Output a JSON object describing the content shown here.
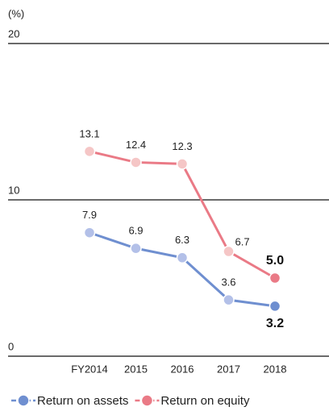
{
  "chart_data": {
    "type": "line",
    "y_unit": "(%)",
    "categories": [
      "FY2014",
      "2015",
      "2016",
      "2017",
      "2018"
    ],
    "ylim": [
      0,
      20
    ],
    "yticks": [
      0,
      10,
      20
    ],
    "grid": true,
    "legend": "bottom",
    "series": [
      {
        "name": "Return on assets",
        "color": "#6f8fd0",
        "point_color": "#b3c0e8",
        "values": [
          7.9,
          6.9,
          6.3,
          3.6,
          3.2
        ],
        "value_labels": [
          "7.9",
          "6.9",
          "6.3",
          "3.6",
          "3.2"
        ]
      },
      {
        "name": "Return on equity",
        "color": "#ea7a86",
        "point_color": "#f5c6c6",
        "values": [
          13.1,
          12.4,
          12.3,
          6.7,
          5.0
        ],
        "value_labels": [
          "13.1",
          "12.4",
          "12.3",
          "6.7",
          "5.0"
        ]
      }
    ]
  }
}
